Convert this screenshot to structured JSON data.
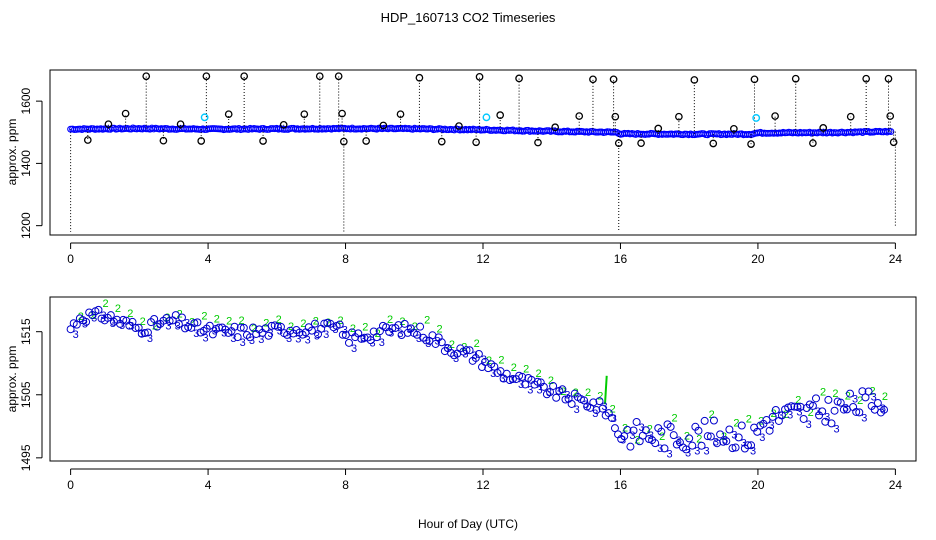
{
  "chart_data": [
    {
      "type": "scatter",
      "title": "HDP_160713  CO2 Timeseries",
      "xlabel": "",
      "ylabel": "approx. ppm",
      "xlim": [
        -0.6,
        24.6
      ],
      "ylim": [
        1170,
        1700
      ],
      "xticks": [
        0,
        4,
        8,
        12,
        16,
        20,
        24
      ],
      "yticks": [
        1200,
        1400,
        1600
      ],
      "colors": {
        "outlier": "#000000",
        "baseline": "#0000ff",
        "highlight": "#00c8ff",
        "green": "#00cc00"
      },
      "baseline": [
        {
          "x": 0.0,
          "y": 1510
        },
        {
          "x": 2.0,
          "y": 1512
        },
        {
          "x": 4.0,
          "y": 1510
        },
        {
          "x": 6.0,
          "y": 1511
        },
        {
          "x": 8.0,
          "y": 1512
        },
        {
          "x": 10.0,
          "y": 1511
        },
        {
          "x": 12.0,
          "y": 1508
        },
        {
          "x": 14.0,
          "y": 1503
        },
        {
          "x": 15.9,
          "y": 1500
        },
        {
          "x": 16.0,
          "y": 1495
        },
        {
          "x": 18.0,
          "y": 1494
        },
        {
          "x": 19.8,
          "y": 1494
        },
        {
          "x": 20.0,
          "y": 1498
        },
        {
          "x": 22.0,
          "y": 1499
        },
        {
          "x": 23.8,
          "y": 1502
        }
      ],
      "outliers_high": [
        {
          "x": 2.2,
          "y": 1680
        },
        {
          "x": 3.95,
          "y": 1680
        },
        {
          "x": 5.05,
          "y": 1680
        },
        {
          "x": 7.25,
          "y": 1680
        },
        {
          "x": 7.8,
          "y": 1680
        },
        {
          "x": 10.15,
          "y": 1675
        },
        {
          "x": 11.9,
          "y": 1678
        },
        {
          "x": 13.05,
          "y": 1673
        },
        {
          "x": 15.2,
          "y": 1670
        },
        {
          "x": 15.8,
          "y": 1670
        },
        {
          "x": 18.15,
          "y": 1668
        },
        {
          "x": 19.9,
          "y": 1670
        },
        {
          "x": 21.1,
          "y": 1672
        },
        {
          "x": 23.15,
          "y": 1672
        },
        {
          "x": 23.8,
          "y": 1672
        },
        {
          "x": 1.6,
          "y": 1560
        },
        {
          "x": 4.6,
          "y": 1558
        },
        {
          "x": 6.8,
          "y": 1558
        },
        {
          "x": 7.9,
          "y": 1560
        },
        {
          "x": 9.6,
          "y": 1558
        },
        {
          "x": 12.5,
          "y": 1555
        },
        {
          "x": 14.8,
          "y": 1552
        },
        {
          "x": 15.85,
          "y": 1550
        },
        {
          "x": 17.7,
          "y": 1550
        },
        {
          "x": 20.5,
          "y": 1552
        },
        {
          "x": 22.7,
          "y": 1550
        },
        {
          "x": 23.85,
          "y": 1552
        },
        {
          "x": 1.1,
          "y": 1526
        },
        {
          "x": 3.2,
          "y": 1526
        },
        {
          "x": 6.2,
          "y": 1524
        },
        {
          "x": 9.1,
          "y": 1522
        },
        {
          "x": 11.3,
          "y": 1520
        },
        {
          "x": 14.1,
          "y": 1516
        },
        {
          "x": 17.1,
          "y": 1512
        },
        {
          "x": 19.3,
          "y": 1511
        },
        {
          "x": 21.9,
          "y": 1514
        }
      ],
      "outliers_low": [
        {
          "x": 0.5,
          "y": 1475
        },
        {
          "x": 2.7,
          "y": 1473
        },
        {
          "x": 3.8,
          "y": 1472
        },
        {
          "x": 5.6,
          "y": 1472
        },
        {
          "x": 7.95,
          "y": 1470
        },
        {
          "x": 8.6,
          "y": 1472
        },
        {
          "x": 10.8,
          "y": 1470
        },
        {
          "x": 11.8,
          "y": 1468
        },
        {
          "x": 13.6,
          "y": 1467
        },
        {
          "x": 15.95,
          "y": 1465
        },
        {
          "x": 16.6,
          "y": 1465
        },
        {
          "x": 18.7,
          "y": 1464
        },
        {
          "x": 19.8,
          "y": 1462
        },
        {
          "x": 21.6,
          "y": 1465
        },
        {
          "x": 23.95,
          "y": 1468
        }
      ],
      "highlights": [
        {
          "x": 3.9,
          "y": 1548
        },
        {
          "x": 12.1,
          "y": 1548
        },
        {
          "x": 19.95,
          "y": 1546
        }
      ],
      "drops": [
        {
          "x": 0.0,
          "y": 1180
        },
        {
          "x": 7.95,
          "y": 1180
        },
        {
          "x": 15.95,
          "y": 1180
        },
        {
          "x": 24.0,
          "y": 1200
        }
      ]
    },
    {
      "type": "line",
      "title": "",
      "xlabel": "Hour of Day (UTC)",
      "ylabel": "approx. ppm",
      "xlim": [
        -0.6,
        24.6
      ],
      "ylim": [
        1494.5,
        1520.5
      ],
      "xticks": [
        0,
        4,
        8,
        12,
        16,
        20,
        24
      ],
      "yticks": [
        1495,
        1505,
        1515
      ],
      "colors": {
        "series3": "#0000cc",
        "series2": "#00cc00"
      },
      "trend": [
        {
          "x": 0.0,
          "y": 1515.5
        },
        {
          "x": 0.3,
          "y": 1517.5
        },
        {
          "x": 1.0,
          "y": 1517.5
        },
        {
          "x": 1.5,
          "y": 1516.5
        },
        {
          "x": 2.0,
          "y": 1515.5
        },
        {
          "x": 3.0,
          "y": 1516.8
        },
        {
          "x": 3.7,
          "y": 1515.5
        },
        {
          "x": 4.2,
          "y": 1515.0
        },
        {
          "x": 5.5,
          "y": 1515.0
        },
        {
          "x": 6.5,
          "y": 1515.5
        },
        {
          "x": 7.8,
          "y": 1515.5
        },
        {
          "x": 8.0,
          "y": 1514.0
        },
        {
          "x": 8.6,
          "y": 1514.5
        },
        {
          "x": 9.5,
          "y": 1515.5
        },
        {
          "x": 10.2,
          "y": 1515.0
        },
        {
          "x": 11.0,
          "y": 1512.5
        },
        {
          "x": 11.8,
          "y": 1511.0
        },
        {
          "x": 12.5,
          "y": 1508.5
        },
        {
          "x": 13.5,
          "y": 1506.5
        },
        {
          "x": 14.5,
          "y": 1504.5
        },
        {
          "x": 15.2,
          "y": 1503.5
        },
        {
          "x": 15.6,
          "y": 1502.5
        },
        {
          "x": 16.0,
          "y": 1499.0
        },
        {
          "x": 17.0,
          "y": 1498.5
        },
        {
          "x": 18.0,
          "y": 1498.5
        },
        {
          "x": 19.0,
          "y": 1499.0
        },
        {
          "x": 19.8,
          "y": 1498.0
        },
        {
          "x": 20.2,
          "y": 1501.0
        },
        {
          "x": 21.0,
          "y": 1502.0
        },
        {
          "x": 22.0,
          "y": 1502.5
        },
        {
          "x": 23.0,
          "y": 1503.5
        },
        {
          "x": 23.8,
          "y": 1504.5
        }
      ],
      "point_labels": [
        "3",
        "2"
      ],
      "spike": {
        "x1": 15.55,
        "y1": 1503.5,
        "x2": 15.6,
        "y2": 1508.0
      }
    }
  ]
}
